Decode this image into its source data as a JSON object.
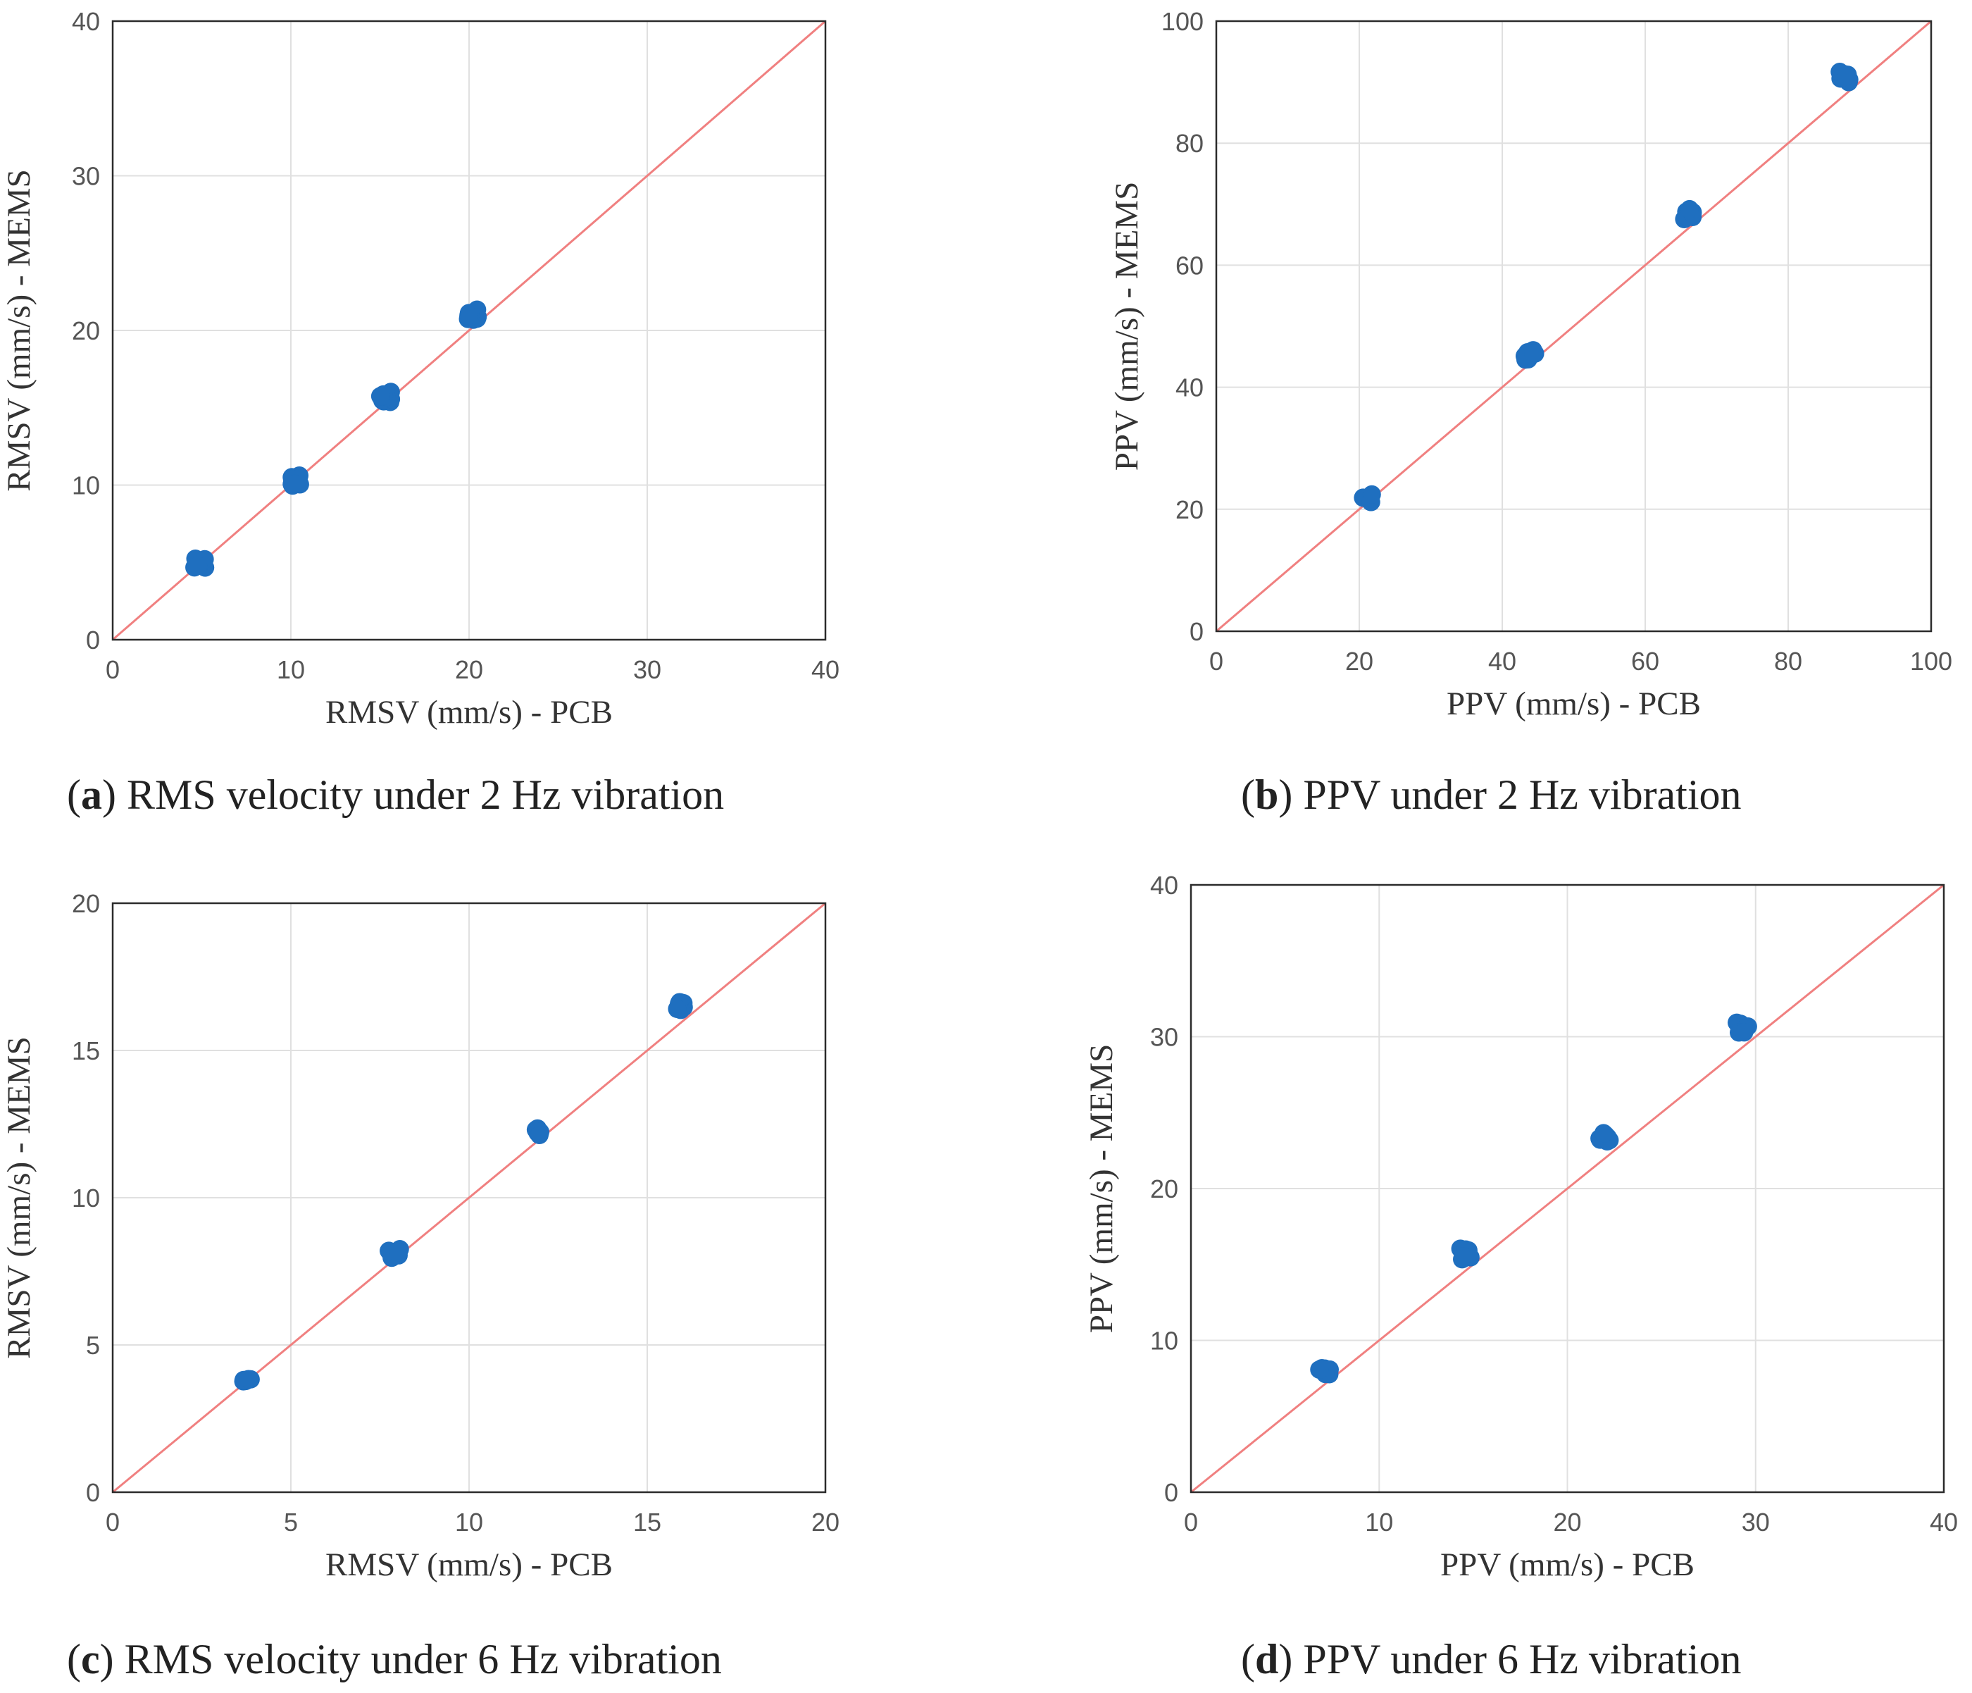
{
  "colors": {
    "points": "#1f6fbf",
    "reference_line": "#f08080",
    "grid": "#e0e0e0",
    "frame": "#2b2b2b"
  },
  "chart_data": [
    {
      "id": "a",
      "type": "scatter",
      "xlabel": "RMSV (mm/s) - PCB",
      "ylabel": "RMSV (mm/s) - MEMS",
      "xlim": [
        0,
        40
      ],
      "ylim": [
        0,
        40
      ],
      "xticks": [
        "0",
        "10",
        "20",
        "30",
        "40"
      ],
      "yticks": [
        "0",
        "10",
        "20",
        "30",
        "40"
      ],
      "reference_line": "y = x",
      "grid": true,
      "caption": {
        "label": "a",
        "text": " RMS velocity under 2 Hz vibration"
      },
      "clusters": [
        {
          "x": 4.9,
          "y": 5.0,
          "count": 6
        },
        {
          "x": 10.2,
          "y": 10.3,
          "count": 9
        },
        {
          "x": 15.3,
          "y": 15.7,
          "count": 14
        },
        {
          "x": 20.2,
          "y": 21.0,
          "count": 20
        }
      ]
    },
    {
      "id": "b",
      "type": "scatter",
      "xlabel": "PPV (mm/s) - PCB",
      "ylabel": "PPV (mm/s) - MEMS",
      "xlim": [
        0,
        100
      ],
      "ylim": [
        0,
        100
      ],
      "xticks": [
        "0",
        "20",
        "40",
        "60",
        "80",
        "100"
      ],
      "yticks": [
        "0",
        "20",
        "40",
        "60",
        "80",
        "100"
      ],
      "reference_line": "y = x",
      "grid": true,
      "caption": {
        "label": "b",
        "text": " PPV under 2 Hz vibration"
      },
      "clusters": [
        {
          "x": 21.3,
          "y": 22.0,
          "count": 6
        },
        {
          "x": 43.9,
          "y": 45.2,
          "count": 8
        },
        {
          "x": 66.0,
          "y": 68.4,
          "count": 9
        },
        {
          "x": 87.9,
          "y": 90.9,
          "count": 9
        }
      ]
    },
    {
      "id": "c",
      "type": "scatter",
      "xlabel": "RMSV (mm/s) - PCB",
      "ylabel": "RMSV (mm/s) - MEMS",
      "xlim": [
        0,
        20
      ],
      "ylim": [
        0,
        20
      ],
      "xticks": [
        "0",
        "5",
        "10",
        "15",
        "20"
      ],
      "yticks": [
        "0",
        "5",
        "10",
        "15",
        "20"
      ],
      "reference_line": "y = x",
      "grid": true,
      "caption": {
        "label": "c",
        "text": " RMS velocity under 6 Hz vibration"
      },
      "clusters": [
        {
          "x": 3.8,
          "y": 3.9,
          "count": 5
        },
        {
          "x": 7.9,
          "y": 8.1,
          "count": 5
        },
        {
          "x": 11.9,
          "y": 12.3,
          "count": 5
        },
        {
          "x": 15.9,
          "y": 16.5,
          "count": 6
        }
      ]
    },
    {
      "id": "d",
      "type": "scatter",
      "xlabel": "PPV (mm/s) - PCB",
      "ylabel": "PPV (mm/s) - MEMS",
      "xlim": [
        0,
        40
      ],
      "ylim": [
        0,
        40
      ],
      "xticks": [
        "0",
        "10",
        "20",
        "30",
        "40"
      ],
      "yticks": [
        "0",
        "10",
        "20",
        "30",
        "40"
      ],
      "reference_line": "y = x",
      "grid": true,
      "caption": {
        "label": "d",
        "text": " PPV under 6 Hz vibration"
      },
      "clusters": [
        {
          "x": 7.1,
          "y": 8.0,
          "count": 6
        },
        {
          "x": 14.6,
          "y": 15.7,
          "count": 8
        },
        {
          "x": 22.0,
          "y": 23.4,
          "count": 9
        },
        {
          "x": 29.3,
          "y": 30.6,
          "count": 8
        }
      ]
    }
  ]
}
